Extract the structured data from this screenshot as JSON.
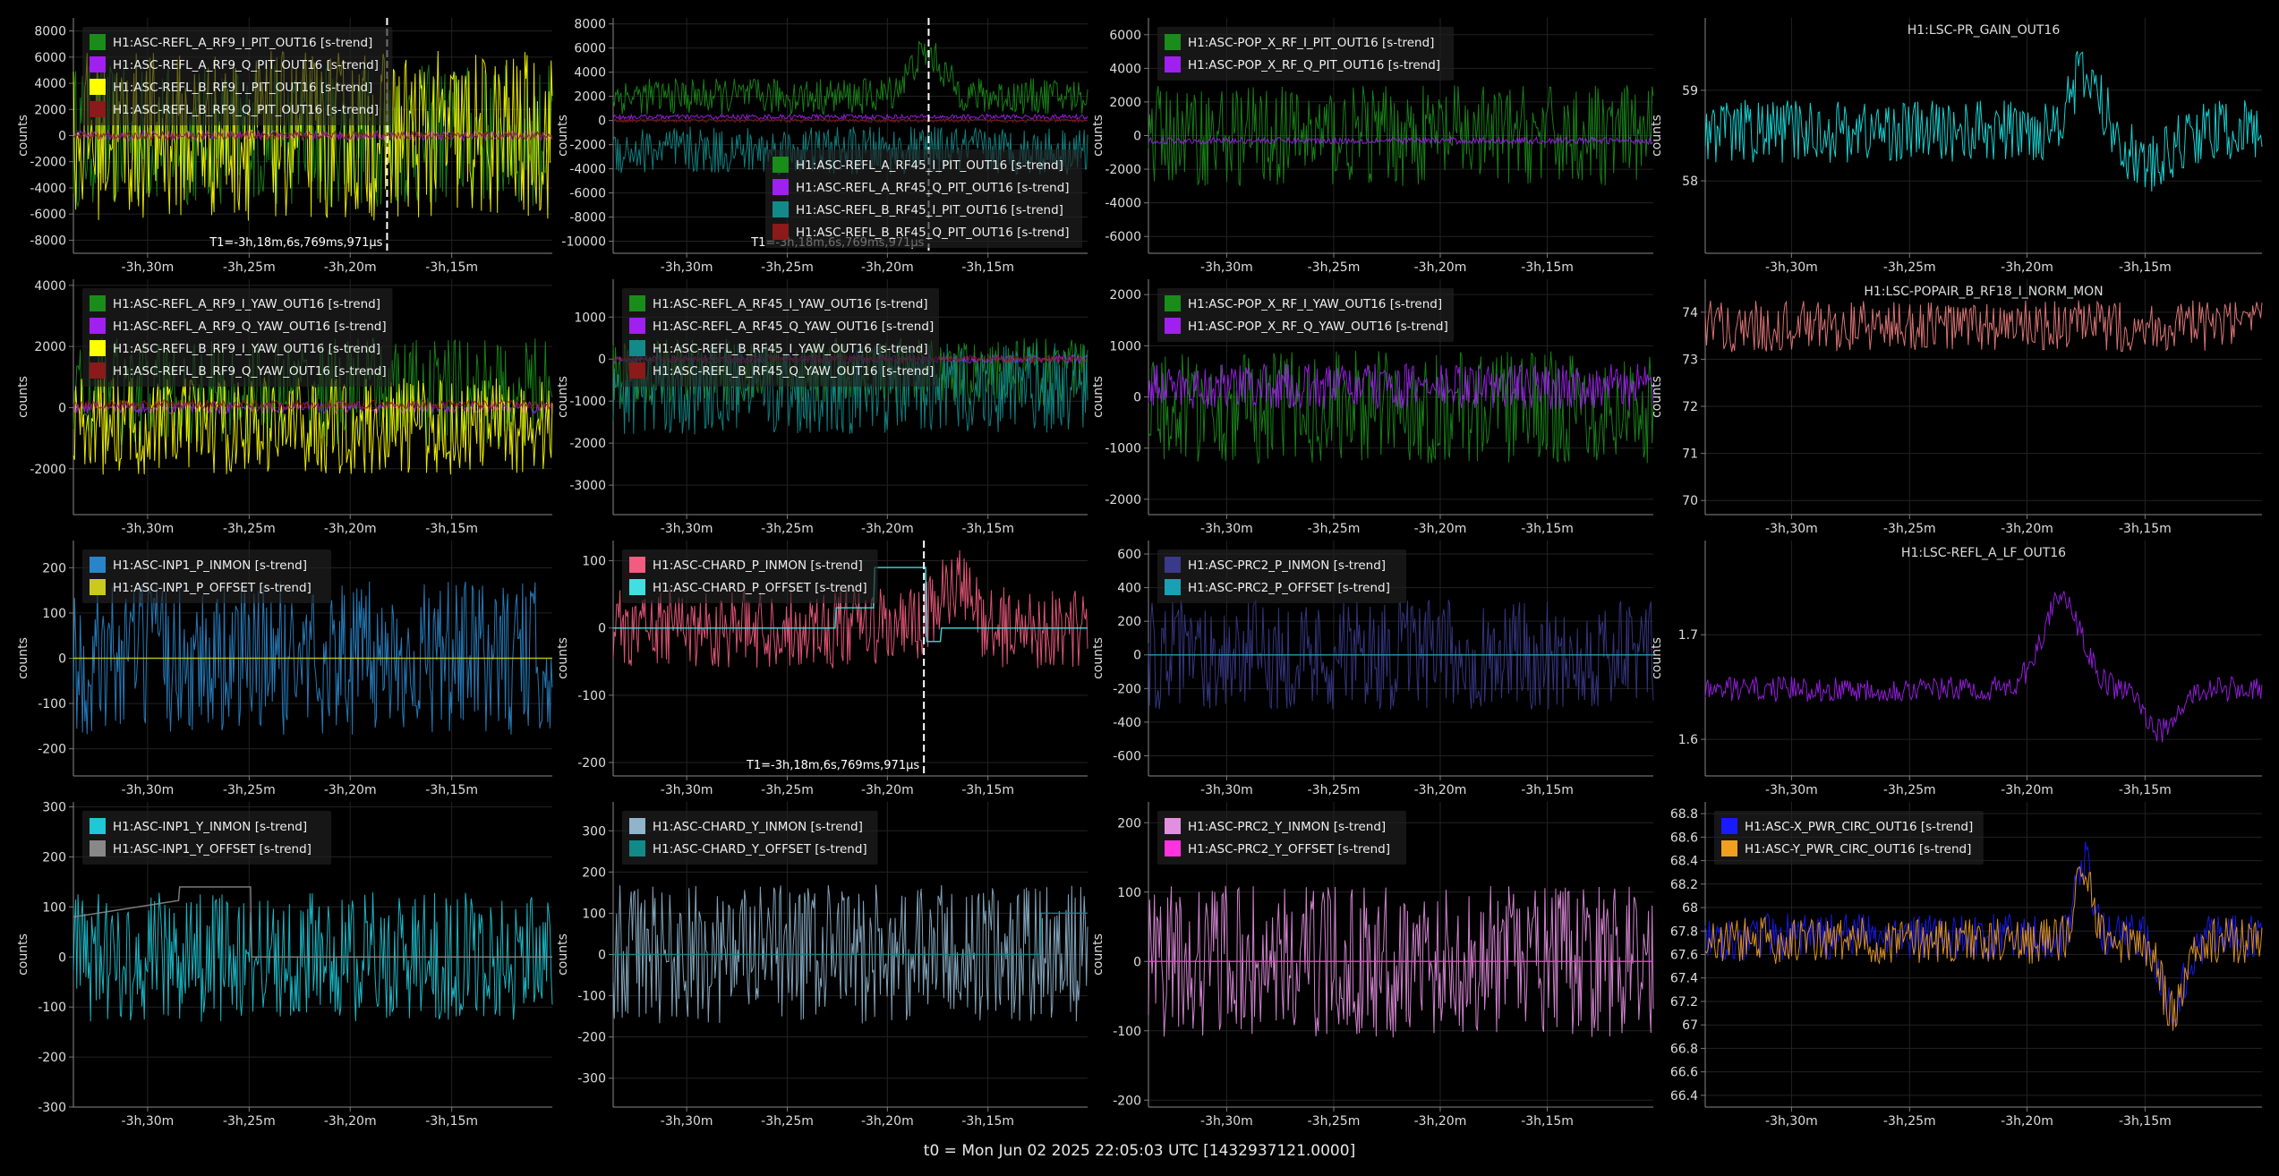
{
  "footer": "t0 = Mon Jun 02 2025 22:05:03 UTC [1432937121.0000]",
  "x_ticks": [
    "-3h,30m",
    "-3h,25m",
    "-3h,20m",
    "-3h,15m"
  ],
  "chart_data": [
    {
      "type": "line",
      "ylabel": "counts",
      "yticks": [
        "8000",
        "6000",
        "4000",
        "2000",
        "0",
        "-2000",
        "-4000",
        "-6000",
        "-8000"
      ],
      "ylim": [
        -9000,
        9000
      ],
      "cursor_label": "T1=-3h,18m,6s,769ms,971μs",
      "legend": "top-left",
      "series": [
        {
          "name": "H1:ASC-REFL_A_RF9_I_PIT_OUT16 [s-trend]",
          "color": "#1a8c1a",
          "amp": 5500,
          "bias": 0
        },
        {
          "name": "H1:ASC-REFL_A_RF9_Q_PIT_OUT16 [s-trend]",
          "color": "#a020f0",
          "amp": 400,
          "bias": 0
        },
        {
          "name": "H1:ASC-REFL_B_RF9_I_PIT_OUT16 [s-trend]",
          "color": "#ffff00",
          "amp": 6500,
          "bias": 0
        },
        {
          "name": "H1:ASC-REFL_B_RF9_Q_PIT_OUT16 [s-trend]",
          "color": "#8b1a1a",
          "amp": 300,
          "bias": 0
        }
      ]
    },
    {
      "type": "line",
      "ylabel": "counts",
      "yticks": [
        "8000",
        "6000",
        "4000",
        "2000",
        "0",
        "-2000",
        "-4000",
        "-6000",
        "-8000",
        "-10000"
      ],
      "ylim": [
        -11000,
        8500
      ],
      "cursor_label": "T1=-3h,18m,6s,769ms,971μs",
      "legend": "bottom-right",
      "series": [
        {
          "name": "H1:ASC-REFL_A_RF45_I_PIT_OUT16 [s-trend]",
          "color": "#1a8c1a",
          "amp": 1500,
          "bias": 2000
        },
        {
          "name": "H1:ASC-REFL_A_RF45_Q_PIT_OUT16 [s-trend]",
          "color": "#a020f0",
          "amp": 200,
          "bias": 300
        },
        {
          "name": "H1:ASC-REFL_B_RF45_I_PIT_OUT16 [s-trend]",
          "color": "#138a8a",
          "amp": 2000,
          "bias": -2500
        },
        {
          "name": "H1:ASC-REFL_B_RF45_Q_PIT_OUT16 [s-trend]",
          "color": "#8b1a1a",
          "amp": 150,
          "bias": 0
        }
      ]
    },
    {
      "type": "line",
      "ylabel": "counts",
      "yticks": [
        "6000",
        "4000",
        "2000",
        "0",
        "-2000",
        "-4000",
        "-6000"
      ],
      "ylim": [
        -7000,
        7000
      ],
      "cursor_label": "",
      "legend": "top-left",
      "series": [
        {
          "name": "H1:ASC-POP_X_RF_I_PIT_OUT16 [s-trend]",
          "color": "#1a8c1a",
          "amp": 3000,
          "bias": 0
        },
        {
          "name": "H1:ASC-POP_X_RF_Q_PIT_OUT16 [s-trend]",
          "color": "#a020f0",
          "amp": 200,
          "bias": -300
        }
      ]
    },
    {
      "type": "line",
      "ylabel": "counts",
      "title": "H1:LSC-PR_GAIN_OUT16",
      "yticks": [
        "59",
        "58"
      ],
      "yvals": [
        59,
        58
      ],
      "ylim": [
        57.2,
        59.8
      ],
      "cursor_label": "",
      "legend": "none",
      "series": [
        {
          "name": "",
          "color": "#19e6e6",
          "amp": 0.35,
          "bias": 58.55
        }
      ]
    },
    {
      "type": "line",
      "ylabel": "counts",
      "yticks": [
        "4000",
        "2000",
        "0",
        "-2000"
      ],
      "ylim": [
        -3500,
        4200
      ],
      "cursor_label": "",
      "legend": "top-left",
      "series": [
        {
          "name": "H1:ASC-REFL_A_RF9_I_YAW_OUT16 [s-trend]",
          "color": "#1a8c1a",
          "amp": 1800,
          "bias": 500
        },
        {
          "name": "H1:ASC-REFL_A_RF9_Q_YAW_OUT16 [s-trend]",
          "color": "#a020f0",
          "amp": 200,
          "bias": 0
        },
        {
          "name": "H1:ASC-REFL_B_RF9_I_YAW_OUT16 [s-trend]",
          "color": "#ffff00",
          "amp": 1600,
          "bias": -600
        },
        {
          "name": "H1:ASC-REFL_B_RF9_Q_YAW_OUT16 [s-trend]",
          "color": "#8b1a1a",
          "amp": 150,
          "bias": 100
        }
      ]
    },
    {
      "type": "line",
      "ylabel": "counts",
      "yticks": [
        "1000",
        "0",
        "-1000",
        "-2000",
        "-3000"
      ],
      "ylim": [
        -3700,
        1900
      ],
      "cursor_label": "",
      "legend": "top-left",
      "series": [
        {
          "name": "H1:ASC-REFL_A_RF45_I_YAW_OUT16 [s-trend]",
          "color": "#1a8c1a",
          "amp": 800,
          "bias": -300
        },
        {
          "name": "H1:ASC-REFL_A_RF45_Q_YAW_OUT16 [s-trend]",
          "color": "#a020f0",
          "amp": 100,
          "bias": 0
        },
        {
          "name": "H1:ASC-REFL_B_RF45_I_YAW_OUT16 [s-trend]",
          "color": "#138a8a",
          "amp": 1100,
          "bias": -700
        },
        {
          "name": "H1:ASC-REFL_B_RF45_Q_YAW_OUT16 [s-trend]",
          "color": "#8b1a1a",
          "amp": 80,
          "bias": 0
        }
      ]
    },
    {
      "type": "line",
      "ylabel": "counts",
      "yticks": [
        "2000",
        "1000",
        "0",
        "-1000",
        "-2000"
      ],
      "ylim": [
        -2300,
        2300
      ],
      "cursor_label": "",
      "legend": "top-left",
      "series": [
        {
          "name": "H1:ASC-POP_X_RF_I_YAW_OUT16 [s-trend]",
          "color": "#1a8c1a",
          "amp": 1100,
          "bias": -200
        },
        {
          "name": "H1:ASC-POP_X_RF_Q_YAW_OUT16 [s-trend]",
          "color": "#a020f0",
          "amp": 450,
          "bias": 200
        }
      ]
    },
    {
      "type": "line",
      "ylabel": "counts",
      "title": "H1:LSC-POPAIR_B_RF18_I_NORM_MON",
      "yticks": [
        "74",
        "73",
        "72",
        "71",
        "70"
      ],
      "yvals": [
        74,
        73,
        72,
        71,
        70
      ],
      "ylim": [
        69.7,
        74.7
      ],
      "cursor_label": "",
      "legend": "none",
      "series": [
        {
          "name": "",
          "color": "#f08080",
          "amp": 0.55,
          "bias": 73.7
        }
      ]
    },
    {
      "type": "line",
      "ylabel": "counts",
      "yticks": [
        "200",
        "100",
        "0",
        "-100",
        "-200"
      ],
      "ylim": [
        -260,
        260
      ],
      "cursor_label": "",
      "legend": "top-left",
      "series": [
        {
          "name": "H1:ASC-INP1_P_INMON [s-trend]",
          "color": "#2a85c8",
          "amp": 170,
          "bias": 0
        },
        {
          "name": "H1:ASC-INP1_P_OFFSET [s-trend]",
          "color": "#c9c920",
          "amp": 0,
          "bias": 0,
          "flat": true
        }
      ]
    },
    {
      "type": "line",
      "ylabel": "counts",
      "yticks": [
        "100",
        "0",
        "-100",
        "-200"
      ],
      "ylim": [
        -220,
        130
      ],
      "cursor_label": "T1=-3h,18m,6s,769ms,971μs",
      "legend": "top-left",
      "series": [
        {
          "name": "H1:ASC-CHARD_P_INMON [s-trend]",
          "color": "#f25c7e",
          "amp": 60,
          "bias": 0
        },
        {
          "name": "H1:ASC-CHARD_P_OFFSET [s-trend]",
          "color": "#40e0e0",
          "amp": 0,
          "bias": 0,
          "step": true
        }
      ]
    },
    {
      "type": "line",
      "ylabel": "counts",
      "yticks": [
        "600",
        "400",
        "200",
        "0",
        "-200",
        "-400",
        "-600"
      ],
      "ylim": [
        -720,
        680
      ],
      "cursor_label": "",
      "legend": "top-left",
      "series": [
        {
          "name": "H1:ASC-PRC2_P_INMON [s-trend]",
          "color": "#3a3a8a",
          "amp": 330,
          "bias": 0
        },
        {
          "name": "H1:ASC-PRC2_P_OFFSET [s-trend]",
          "color": "#1aa0b5",
          "amp": 0,
          "bias": 0,
          "flat": true
        }
      ]
    },
    {
      "type": "line",
      "ylabel": "counts",
      "title": "H1:LSC-REFL_A_LF_OUT16",
      "yticks": [
        "1.7",
        "1.6"
      ],
      "yvals": [
        1.7,
        1.6
      ],
      "ylim": [
        1.565,
        1.79
      ],
      "cursor_label": "",
      "legend": "none",
      "series": [
        {
          "name": "",
          "color": "#a020f0",
          "amp": 0.012,
          "bias": 1.648
        }
      ]
    },
    {
      "type": "line",
      "ylabel": "counts",
      "yticks": [
        "300",
        "200",
        "100",
        "0",
        "-100",
        "-200",
        "-300"
      ],
      "ylim": [
        -300,
        310
      ],
      "cursor_label": "",
      "legend": "top-left",
      "series": [
        {
          "name": "H1:ASC-INP1_Y_INMON [s-trend]",
          "color": "#1ec8d6",
          "amp": 130,
          "bias": 0
        },
        {
          "name": "H1:ASC-INP1_Y_OFFSET [s-trend]",
          "color": "#888888",
          "amp": 0,
          "bias": 0,
          "step2": true
        }
      ]
    },
    {
      "type": "line",
      "ylabel": "counts",
      "yticks": [
        "300",
        "200",
        "100",
        "0",
        "-100",
        "-200",
        "-300"
      ],
      "ylim": [
        -370,
        370
      ],
      "cursor_label": "",
      "legend": "top-left",
      "series": [
        {
          "name": "H1:ASC-CHARD_Y_INMON [s-trend]",
          "color": "#8fb4cc",
          "amp": 170,
          "bias": 0
        },
        {
          "name": "H1:ASC-CHARD_Y_OFFSET [s-trend]",
          "color": "#138a8a",
          "amp": 0,
          "bias": 0,
          "step3": true
        }
      ]
    },
    {
      "type": "line",
      "ylabel": "counts",
      "yticks": [
        "200",
        "100",
        "0",
        "-100",
        "-200"
      ],
      "ylim": [
        -210,
        230
      ],
      "cursor_label": "",
      "legend": "top-left",
      "series": [
        {
          "name": "H1:ASC-PRC2_Y_INMON [s-trend]",
          "color": "#e38fe0",
          "amp": 110,
          "bias": 0
        },
        {
          "name": "H1:ASC-PRC2_Y_OFFSET [s-trend]",
          "color": "#ff33dd",
          "amp": 0,
          "bias": 0,
          "flat": true
        }
      ]
    },
    {
      "type": "line",
      "ylabel": "",
      "yticks": [
        "68.8",
        "68.6",
        "68.4",
        "68.2",
        "68",
        "67.8",
        "67.6",
        "67.4",
        "67.2",
        "67",
        "66.8",
        "66.6",
        "66.4"
      ],
      "yvals": [
        68.8,
        68.6,
        68.4,
        68.2,
        68,
        67.8,
        67.6,
        67.4,
        67.2,
        67,
        66.8,
        66.6,
        66.4
      ],
      "ylim": [
        66.3,
        68.9
      ],
      "cursor_label": "",
      "legend": "top-left",
      "series": [
        {
          "name": "H1:ASC-X_PWR_CIRC_OUT16 [s-trend]",
          "color": "#1a1aff",
          "amp": 0.2,
          "bias": 67.75
        },
        {
          "name": "H1:ASC-Y_PWR_CIRC_OUT16 [s-trend]",
          "color": "#f0a020",
          "amp": 0.2,
          "bias": 67.72
        }
      ]
    }
  ]
}
